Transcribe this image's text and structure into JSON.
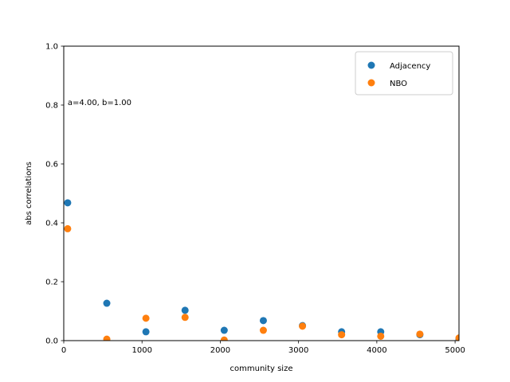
{
  "chart_data": {
    "type": "scatter",
    "xlabel": "community size",
    "ylabel": "abs correlations",
    "xlim": [
      0,
      5050
    ],
    "ylim": [
      0,
      1.0
    ],
    "xticks": [
      0,
      1000,
      2000,
      3000,
      4000,
      5000
    ],
    "xtick_labels": [
      "0",
      "1000",
      "2000",
      "3000",
      "4000",
      "5000"
    ],
    "yticks": [
      0.0,
      0.2,
      0.4,
      0.6,
      0.8,
      1.0
    ],
    "ytick_labels": [
      "0.0",
      "0.2",
      "0.4",
      "0.6",
      "0.8",
      "1.0"
    ],
    "annotation": {
      "text": "a=4.00, b=1.00",
      "x": 50,
      "y": 0.8
    },
    "legend_position": "top-right",
    "grid": false,
    "series": [
      {
        "name": "Adjacency",
        "color": "#1f77b4",
        "x": [
          50,
          550,
          1050,
          1550,
          2050,
          2550,
          3050,
          3550,
          4050,
          4550,
          5050
        ],
        "y": [
          0.468,
          0.127,
          0.03,
          0.103,
          0.035,
          0.068,
          0.051,
          0.03,
          0.03,
          0.02,
          0.005
        ]
      },
      {
        "name": "NBO",
        "color": "#ff7f0e",
        "x": [
          50,
          550,
          1050,
          1550,
          2050,
          2550,
          3050,
          3550,
          4050,
          4550,
          5050
        ],
        "y": [
          0.38,
          0.005,
          0.076,
          0.079,
          0.002,
          0.035,
          0.049,
          0.02,
          0.015,
          0.022,
          0.009
        ]
      }
    ]
  }
}
